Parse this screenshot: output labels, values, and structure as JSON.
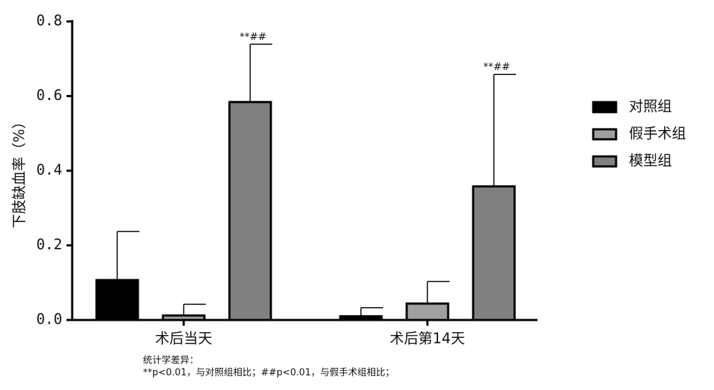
{
  "chart_data": {
    "type": "bar",
    "y_label": "下肢缺血率（%）",
    "categories": [
      "术后当天",
      "术后第14天"
    ],
    "series": [
      {
        "name": "对照组",
        "color": "#000000",
        "values": [
          0.107,
          0.01
        ],
        "errors": [
          0.13,
          0.023
        ]
      },
      {
        "name": "假手术组",
        "color": "#a0a0a0",
        "values": [
          0.012,
          0.044
        ],
        "errors": [
          0.03,
          0.059
        ]
      },
      {
        "name": "模型组",
        "color": "#808080",
        "values": [
          0.584,
          0.358
        ],
        "errors": [
          0.155,
          0.3
        ]
      }
    ],
    "annotations": [
      "**##",
      "**##"
    ],
    "ylim": [
      0,
      0.8
    ],
    "yticks": [
      {
        "value": 0,
        "label": "0.0"
      },
      0.2,
      0.4,
      0.6,
      0.8
    ],
    "legend": "right",
    "footnote": [
      "统计学差异：",
      "**p<0.01，与对照组相比；##p<0.01，与假手术组相比；"
    ]
  }
}
